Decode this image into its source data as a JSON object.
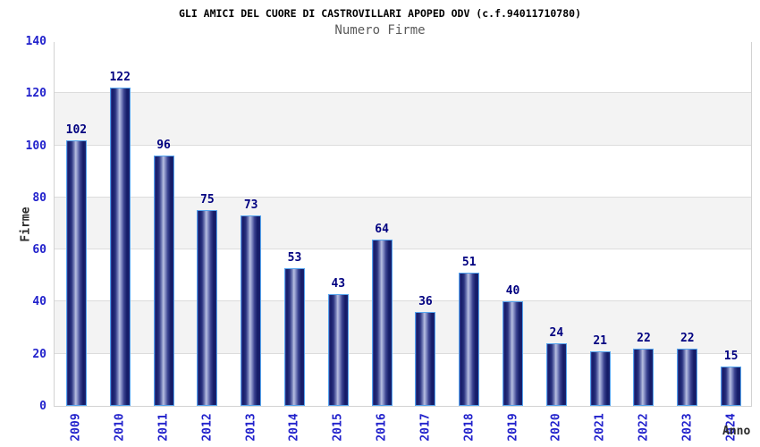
{
  "header": {
    "title": "GLI AMICI DEL CUORE DI CASTROVILLARI APOPED ODV (c.f.94011710780)",
    "subtitle": "Numero Firme"
  },
  "chart_data": {
    "type": "bar",
    "title": "GLI AMICI DEL CUORE DI CASTROVILLARI APOPED ODV (c.f.94011710780)",
    "subtitle": "Numero Firme",
    "xlabel": "Anno",
    "ylabel": "Firme",
    "categories": [
      "2009",
      "2010",
      "2011",
      "2012",
      "2013",
      "2014",
      "2015",
      "2016",
      "2017",
      "2018",
      "2019",
      "2020",
      "2021",
      "2022",
      "2023",
      "2024"
    ],
    "values": [
      102,
      122,
      96,
      75,
      73,
      53,
      43,
      64,
      36,
      51,
      40,
      24,
      21,
      22,
      22,
      15
    ],
    "ylim": [
      0,
      140
    ],
    "ytick_step": 20,
    "grid": true,
    "legend": false,
    "value_labels_shown": true,
    "colors": {
      "bar_edge": "#141b66",
      "bar_mid": "#b8bfe0",
      "bar_border": "#55a4ee",
      "tick_label": "#2222cc",
      "value_label": "#000080",
      "band_gray": "#f3f3f3",
      "gridline": "#dcdcdc",
      "plot_border": "#d2d2d2",
      "title_color": "#000000",
      "subtitle_color": "#5a5a5a",
      "axis_title_color": "#2b2b2b"
    }
  }
}
